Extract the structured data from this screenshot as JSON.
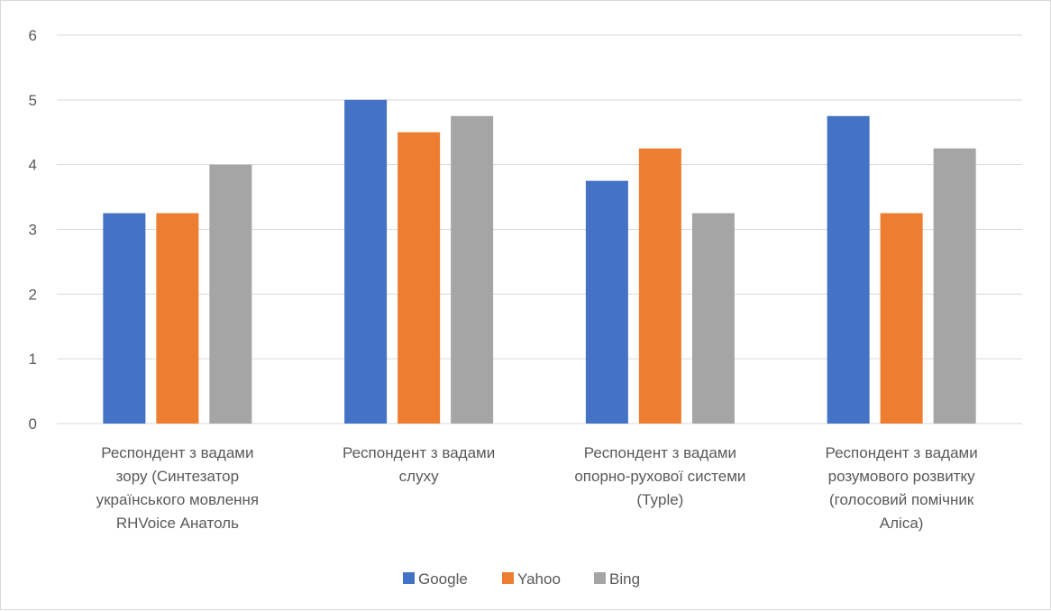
{
  "chart_data": {
    "type": "bar",
    "categories": [
      [
        "Респондент з вадами",
        "зору (Синтезатор",
        "українського мовлення",
        "RHVoice Анатоль"
      ],
      [
        "Респондент з вадами",
        "слуху"
      ],
      [
        "Респондент з вадами",
        "опорно-рухової системи",
        "(Typle)"
      ],
      [
        "Респондент з вадами",
        "розумового розвитку",
        "(голосовий помічник",
        "Аліса)"
      ]
    ],
    "series": [
      {
        "name": "Google",
        "color": "#4472C4",
        "values": [
          3.25,
          5,
          3.75,
          4.75
        ]
      },
      {
        "name": "Yahoo",
        "color": "#ED7D31",
        "values": [
          3.25,
          4.5,
          4.25,
          3.25
        ]
      },
      {
        "name": "Bing",
        "color": "#A5A5A5",
        "values": [
          4,
          4.75,
          3.25,
          4.25
        ]
      }
    ],
    "yticks": [
      "0",
      "1",
      "2",
      "3",
      "4",
      "5",
      "6"
    ],
    "ylim": [
      0,
      6
    ],
    "grid": true,
    "legend_position": "bottom"
  }
}
